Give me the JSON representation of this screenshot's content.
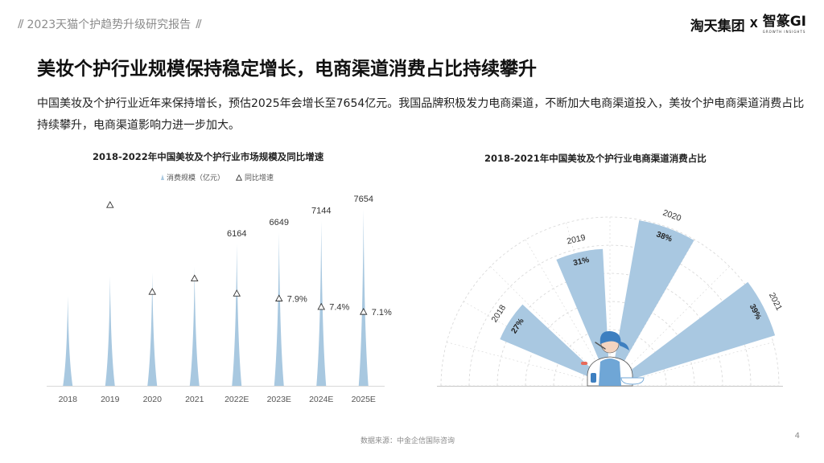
{
  "header": {
    "report_title": "2023天猫个护趋势升级研究报告",
    "brand_left": "淘天集团",
    "brand_x": "X",
    "brand_right": "智篆GI",
    "brand_sub": "GROWTH INSIGHTS"
  },
  "headline": "美妆个护行业规模保持稳定增长，电商渠道消费占比持续攀升",
  "body": "中国美妆及个护行业近年来保持增长，预估2025年会增长至7654亿元。我国品牌积极发力电商渠道，不断加大电商渠道投入，美妆个护电商渠道消费占比持续攀升，电商渠道影响力进一步加大。",
  "footer": {
    "source": "数据来源：中金企信国际咨询",
    "page_number": "4"
  },
  "colors": {
    "bar": "#a8c8e0",
    "sector": "#a9c8e1",
    "grid": "#d6d6d6"
  },
  "chart_data": [
    {
      "type": "bar",
      "title": "2018-2022年中国美妆及个护行业市场规模及同比增速",
      "categories": [
        "2018",
        "2019",
        "2020",
        "2021",
        "2022E",
        "2023E",
        "2024E",
        "2025E"
      ],
      "series": [
        {
          "name": "消费规模（亿元）",
          "values": [
            3900,
            4750,
            4900,
            5150,
            6164,
            6649,
            7144,
            7654
          ],
          "labels": [
            "",
            "",
            "",
            "",
            "6164",
            "6649",
            "7144",
            "7654"
          ]
        },
        {
          "name": "同比增速",
          "type": "scatter",
          "values": [
            null,
            13.5,
            8.3,
            9.1,
            8.2,
            7.9,
            7.4,
            7.1
          ],
          "labels": [
            "",
            "",
            "",
            "",
            "",
            "7.9%",
            "7.4%",
            "7.1%"
          ]
        }
      ],
      "legend": "top"
    },
    {
      "type": "pie",
      "title": "2018-2021年中国美妆及个护行业电商渠道消费占比",
      "categories": [
        "2018",
        "2019",
        "2020",
        "2021"
      ],
      "values": [
        27,
        31,
        38,
        39
      ],
      "labels": [
        "27%",
        "31%",
        "38%",
        "39%"
      ]
    }
  ]
}
